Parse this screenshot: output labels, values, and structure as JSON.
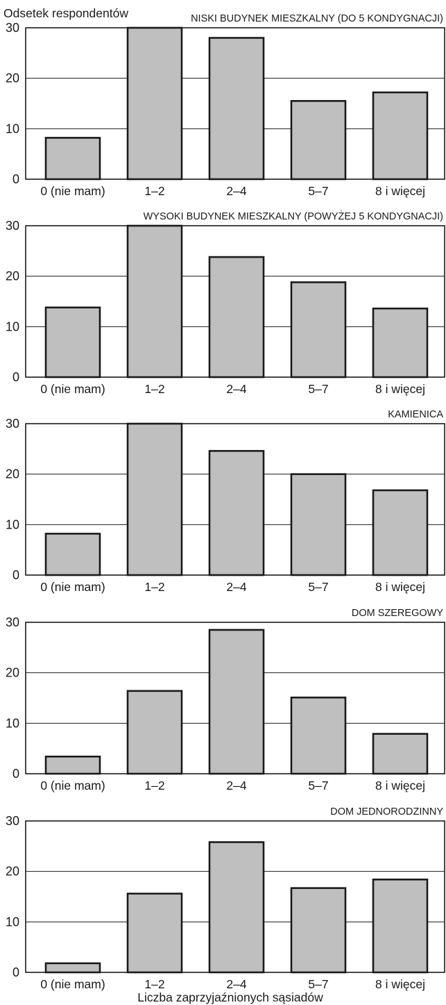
{
  "figure": {
    "ylabel": "Odsetek respondentów",
    "xlabel": "Liczba zaprzyjaźnionych sąsiadów"
  },
  "chart_data": [
    {
      "type": "bar",
      "title": "NISKI BUDYNEK MIESZKALNY (DO 5 KONDYGNACJI)",
      "ylabel": "Odsetek respondentów",
      "xlabel": "",
      "categories": [
        "0 (nie mam)",
        "1–2",
        "2–4",
        "5–7",
        "8 i więcej"
      ],
      "values": [
        8.2,
        30,
        28,
        15.5,
        17.2
      ],
      "ylim": [
        0,
        30
      ],
      "yticks": [
        0,
        10,
        20,
        30
      ],
      "grid": true
    },
    {
      "type": "bar",
      "title": "WYSOKI BUDYNEK MIESZKALNY (POWYŻEJ 5 KONDYGNACJI)",
      "ylabel": "",
      "xlabel": "",
      "categories": [
        "0 (nie mam)",
        "1–2",
        "2–4",
        "5–7",
        "8 i więcej"
      ],
      "values": [
        13.8,
        30,
        23.8,
        18.8,
        13.6
      ],
      "ylim": [
        0,
        30
      ],
      "yticks": [
        0,
        10,
        20,
        30
      ],
      "grid": true
    },
    {
      "type": "bar",
      "title": "KAMIENICA",
      "ylabel": "",
      "xlabel": "",
      "categories": [
        "0 (nie mam)",
        "1–2",
        "2–4",
        "5–7",
        "8 i więcej"
      ],
      "values": [
        8.2,
        30,
        24.6,
        20,
        16.8
      ],
      "ylim": [
        0,
        30
      ],
      "yticks": [
        0,
        10,
        20,
        30
      ],
      "grid": true
    },
    {
      "type": "bar",
      "title": "DOM SZEREGOWY",
      "ylabel": "",
      "xlabel": "",
      "categories": [
        "0 (nie mam)",
        "1–2",
        "2–4",
        "5–7",
        "8 i więcej"
      ],
      "values": [
        3.4,
        16.4,
        28.5,
        15.1,
        7.9
      ],
      "ylim": [
        0,
        30
      ],
      "yticks": [
        0,
        10,
        20,
        30
      ],
      "grid": true
    },
    {
      "type": "bar",
      "title": "DOM JEDNORODZINNY",
      "ylabel": "",
      "xlabel": "Liczba zaprzyjaźnionych sąsiadów",
      "categories": [
        "0 (nie mam)",
        "1–2",
        "2–4",
        "5–7",
        "8 i więcej"
      ],
      "values": [
        1.8,
        15.6,
        25.8,
        16.7,
        18.4
      ],
      "ylim": [
        0,
        30
      ],
      "yticks": [
        0,
        10,
        20,
        30
      ],
      "grid": true
    }
  ]
}
